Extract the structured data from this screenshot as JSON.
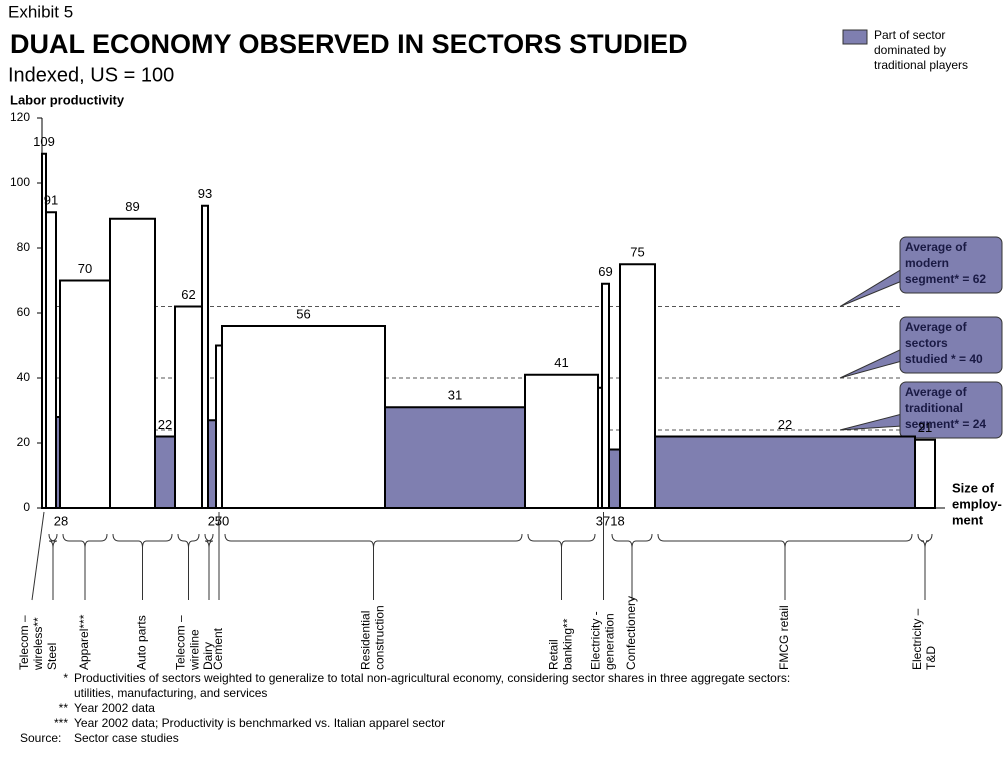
{
  "chart_data": {
    "type": "variable-width-bar",
    "exhibit": "Exhibit 5",
    "title": "DUAL ECONOMY OBSERVED IN SECTORS STUDIED",
    "subtitle": "Indexed, US = 100",
    "y_label": "Labor productivity",
    "x_label": [
      "Size of",
      "employ-",
      "ment"
    ],
    "legend": {
      "color": "#7f7fb0",
      "lines": [
        "Part of sector",
        "dominated by",
        "traditional players"
      ]
    },
    "ylim": [
      0,
      120
    ],
    "yticks": [
      0,
      20,
      40,
      60,
      80,
      100,
      120
    ],
    "traditional_color": "#7f7fb0",
    "sectors": [
      {
        "name": [
          "Telecom –",
          "wireless**"
        ],
        "segments": [
          {
            "value": 109,
            "size": 4,
            "traditional": false
          }
        ]
      },
      {
        "name": [
          "Steel"
        ],
        "segments": [
          {
            "value": 91,
            "size": 10,
            "traditional": false
          },
          {
            "value": 28,
            "size": 4,
            "traditional": true
          }
        ]
      },
      {
        "name": [
          "Apparel***"
        ],
        "segments": [
          {
            "value": 70,
            "size": 50,
            "traditional": false
          }
        ]
      },
      {
        "name": [
          "Auto parts"
        ],
        "segments": [
          {
            "value": 89,
            "size": 45,
            "traditional": false
          },
          {
            "value": 22,
            "size": 20,
            "traditional": true
          }
        ]
      },
      {
        "name": [
          "Telecom –",
          "wireline"
        ],
        "segments": [
          {
            "value": 62,
            "size": 27,
            "traditional": false
          }
        ]
      },
      {
        "name": [
          "Dairy"
        ],
        "segments": [
          {
            "value": 93,
            "size": 6,
            "traditional": false
          },
          {
            "value": 27,
            "size": 8,
            "traditional": true
          }
        ]
      },
      {
        "name": [
          "Cement"
        ],
        "segments": [
          {
            "value": 50,
            "size": 6,
            "traditional": false
          }
        ]
      },
      {
        "name": [
          "Residential",
          "construction"
        ],
        "segments": [
          {
            "value": 56,
            "size": 163,
            "traditional": false
          },
          {
            "value": 31,
            "size": 140,
            "traditional": true
          }
        ]
      },
      {
        "name": [
          "Retail",
          "banking**"
        ],
        "segments": [
          {
            "value": 41,
            "size": 73,
            "traditional": false
          }
        ]
      },
      {
        "name": [
          "Electricity -",
          "generation"
        ],
        "segments": [
          {
            "value": 37,
            "size": 4,
            "traditional": false
          },
          {
            "value": 69,
            "size": 7,
            "traditional": false
          }
        ]
      },
      {
        "name": [
          "Confectionery"
        ],
        "segments": [
          {
            "value": 18,
            "size": 11,
            "traditional": true
          },
          {
            "value": 75,
            "size": 35,
            "traditional": false
          }
        ]
      },
      {
        "name": [
          "FMCG retail"
        ],
        "segments": [
          {
            "value": 22,
            "size": 260,
            "traditional": true
          }
        ]
      },
      {
        "name": [
          "Electricity –",
          "T&D"
        ],
        "segments": [
          {
            "value": 21,
            "size": 20,
            "traditional": false
          }
        ]
      }
    ],
    "reference_lines": [
      {
        "value": 62,
        "label": [
          "Average of",
          "modern",
          "segment* = 62"
        ]
      },
      {
        "value": 40,
        "label": [
          "Average of",
          "sectors",
          "studied * = 40"
        ]
      },
      {
        "value": 24,
        "label": [
          "Average of",
          "traditional",
          "segment* = 24"
        ]
      }
    ],
    "footnotes": [
      {
        "mark": "*",
        "lines": [
          "Productivities of sectors weighted to generalize to total non-agricultural economy, considering sector shares in three aggregate sectors:",
          "utilities, manufacturing, and services"
        ]
      },
      {
        "mark": "**",
        "lines": [
          "Year 2002 data"
        ]
      },
      {
        "mark": "***",
        "lines": [
          "Year 2002 data; Productivity is benchmarked vs. Italian apparel sector"
        ]
      }
    ],
    "source": {
      "label": "Source:",
      "text": "Sector case studies"
    }
  }
}
